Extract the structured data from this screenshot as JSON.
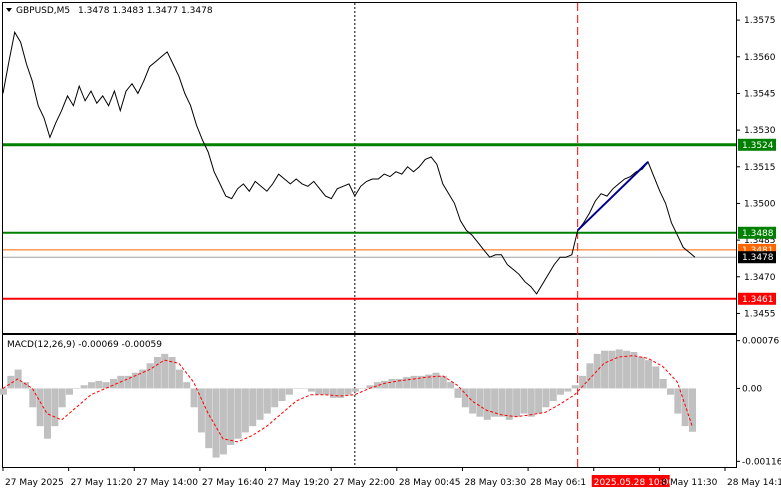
{
  "chart_data": [
    {
      "type": "line",
      "symbol_label": "GBPUSD,M5",
      "ohlc_label": "1.3478 1.3483 1.3477 1.3478",
      "ylim": [
        1.3447,
        1.3582
      ],
      "y_ticks": [
        "1.3575",
        "1.3560",
        "1.3545",
        "1.3530",
        "1.3515",
        "1.3500",
        "1.3485",
        "1.3470",
        "1.3455"
      ],
      "y_tick_values": [
        1.3575,
        1.356,
        1.3545,
        1.353,
        1.3515,
        1.35,
        1.3485,
        1.347,
        1.3455
      ],
      "x_ticks": [
        "27 May 2025",
        "27 May 11:20",
        "27 May 14:00",
        "27 May 16:40",
        "27 May 19:20",
        "27 May 22:00",
        "28 May 00:45",
        "28 May 03:30",
        "28 May 06:1",
        "2025.05.28 10:00",
        "8 May 11:30",
        "28 May 14:10"
      ],
      "x_range": [
        0,
        1000
      ],
      "series": [
        {
          "values": [
            [
              0,
              1.3545
            ],
            [
              8,
              1.3558
            ],
            [
              16,
              1.357
            ],
            [
              24,
              1.3566
            ],
            [
              32,
              1.3557
            ],
            [
              40,
              1.355
            ],
            [
              48,
              1.354
            ],
            [
              56,
              1.3535
            ],
            [
              64,
              1.3527
            ],
            [
              72,
              1.3533
            ],
            [
              80,
              1.3538
            ],
            [
              88,
              1.3544
            ],
            [
              96,
              1.354
            ],
            [
              104,
              1.3548
            ],
            [
              112,
              1.3542
            ],
            [
              120,
              1.3546
            ],
            [
              128,
              1.3541
            ],
            [
              136,
              1.3544
            ],
            [
              144,
              1.354
            ],
            [
              152,
              1.3546
            ],
            [
              160,
              1.3538
            ],
            [
              168,
              1.3546
            ],
            [
              176,
              1.3549
            ],
            [
              184,
              1.3545
            ],
            [
              192,
              1.355
            ],
            [
              200,
              1.3556
            ],
            [
              208,
              1.3558
            ],
            [
              216,
              1.356
            ],
            [
              224,
              1.3562
            ],
            [
              232,
              1.3557
            ],
            [
              240,
              1.3552
            ],
            [
              248,
              1.3545
            ],
            [
              256,
              1.354
            ],
            [
              264,
              1.3532
            ],
            [
              272,
              1.3526
            ],
            [
              280,
              1.3521
            ],
            [
              288,
              1.3513
            ],
            [
              296,
              1.3508
            ],
            [
              304,
              1.3503
            ],
            [
              312,
              1.3502
            ],
            [
              320,
              1.3506
            ],
            [
              328,
              1.3508
            ],
            [
              336,
              1.3505
            ],
            [
              344,
              1.3509
            ],
            [
              352,
              1.3507
            ],
            [
              360,
              1.3505
            ],
            [
              368,
              1.3508
            ],
            [
              376,
              1.3512
            ],
            [
              384,
              1.351
            ],
            [
              392,
              1.3508
            ],
            [
              400,
              1.351
            ],
            [
              408,
              1.3508
            ],
            [
              416,
              1.3507
            ],
            [
              424,
              1.3509
            ],
            [
              432,
              1.3506
            ],
            [
              440,
              1.3503
            ],
            [
              448,
              1.3502
            ],
            [
              456,
              1.3506
            ],
            [
              464,
              1.3507
            ],
            [
              472,
              1.3508
            ],
            [
              480,
              1.3503
            ],
            [
              488,
              1.3507
            ],
            [
              496,
              1.3509
            ],
            [
              504,
              1.351
            ],
            [
              512,
              1.351
            ],
            [
              520,
              1.3512
            ],
            [
              528,
              1.3511
            ],
            [
              536,
              1.3513
            ],
            [
              544,
              1.3512
            ],
            [
              552,
              1.3515
            ],
            [
              560,
              1.3513
            ],
            [
              568,
              1.3515
            ],
            [
              576,
              1.3518
            ],
            [
              584,
              1.3519
            ],
            [
              592,
              1.3516
            ],
            [
              600,
              1.3508
            ],
            [
              608,
              1.3504
            ],
            [
              616,
              1.35
            ],
            [
              624,
              1.3493
            ],
            [
              632,
              1.3489
            ],
            [
              640,
              1.3487
            ],
            [
              648,
              1.3484
            ],
            [
              656,
              1.3481
            ],
            [
              664,
              1.3478
            ],
            [
              672,
              1.3479
            ],
            [
              680,
              1.3479
            ],
            [
              688,
              1.3475
            ],
            [
              696,
              1.3473
            ],
            [
              704,
              1.3471
            ],
            [
              712,
              1.3468
            ],
            [
              720,
              1.3466
            ],
            [
              728,
              1.3463
            ],
            [
              736,
              1.3467
            ],
            [
              744,
              1.3471
            ],
            [
              752,
              1.3475
            ],
            [
              760,
              1.3478
            ],
            [
              768,
              1.3478
            ],
            [
              776,
              1.3479
            ],
            [
              784,
              1.3489
            ],
            [
              792,
              1.3492
            ],
            [
              800,
              1.3496
            ],
            [
              808,
              1.3501
            ],
            [
              816,
              1.3504
            ],
            [
              824,
              1.3503
            ],
            [
              832,
              1.3506
            ],
            [
              840,
              1.3508
            ],
            [
              848,
              1.351
            ],
            [
              856,
              1.3511
            ],
            [
              864,
              1.3513
            ],
            [
              872,
              1.3514
            ],
            [
              880,
              1.3517
            ],
            [
              888,
              1.3511
            ],
            [
              896,
              1.3505
            ],
            [
              904,
              1.35
            ],
            [
              912,
              1.3492
            ],
            [
              920,
              1.3487
            ],
            [
              928,
              1.3482
            ],
            [
              936,
              1.348
            ],
            [
              944,
              1.3478
            ]
          ]
        }
      ],
      "horizontal_levels": [
        {
          "value": 1.3524,
          "label": "1.3524",
          "color": "#008000"
        },
        {
          "value": 1.3488,
          "label": "1.3488",
          "color": "#008000"
        },
        {
          "value": 1.3481,
          "label": "1.3481",
          "color": "#ff6600"
        },
        {
          "value": 1.3478,
          "label": "1.3478",
          "color": "#000000"
        },
        {
          "value": 1.3461,
          "label": "1.3461",
          "color": "#ff0000"
        }
      ],
      "trendline": {
        "from": [
          784,
          1.3489
        ],
        "to": [
          880,
          1.3517
        ],
        "color": "#00008b"
      },
      "vertical_markers": [
        {
          "x": 480,
          "style": "dotted",
          "color": "#000000"
        },
        {
          "x": 784,
          "style": "dashed",
          "color": "#ff0000"
        }
      ],
      "grid": false,
      "legend": "none"
    },
    {
      "type": "bar",
      "indicator_label": "MACD(12,26,9) -0.00069 -0.00059",
      "ylim": [
        -0.00125,
        0.00085
      ],
      "y_ticks": [
        "0.00076",
        "0.00",
        "-0.00116"
      ],
      "y_tick_values": [
        0.00076,
        0.0,
        -0.00116
      ],
      "histogram_color": "#c0c0c0",
      "signal_color": "#ff0000",
      "x_range": [
        0,
        1000
      ],
      "histogram": [
        [
          0,
          -0.0001
        ],
        [
          10,
          0.0002
        ],
        [
          20,
          0.0003
        ],
        [
          30,
          0.0001
        ],
        [
          40,
          -0.0003
        ],
        [
          50,
          -0.0006
        ],
        [
          60,
          -0.0008
        ],
        [
          70,
          -0.0006
        ],
        [
          80,
          -0.0003
        ],
        [
          90,
          -0.0001
        ],
        [
          100,
          0.0
        ],
        [
          110,
          5e-05
        ],
        [
          120,
          0.0001
        ],
        [
          130,
          0.00012
        ],
        [
          140,
          0.0001
        ],
        [
          150,
          0.00015
        ],
        [
          160,
          0.0002
        ],
        [
          170,
          0.0002
        ],
        [
          180,
          0.00025
        ],
        [
          190,
          0.0003
        ],
        [
          200,
          0.0004
        ],
        [
          210,
          0.0005
        ],
        [
          220,
          0.00055
        ],
        [
          230,
          0.0005
        ],
        [
          240,
          0.0003
        ],
        [
          250,
          0.0001
        ],
        [
          260,
          -0.0003
        ],
        [
          270,
          -0.0007
        ],
        [
          280,
          -0.00095
        ],
        [
          290,
          -0.0011
        ],
        [
          300,
          -0.00105
        ],
        [
          310,
          -0.0009
        ],
        [
          320,
          -0.0008
        ],
        [
          330,
          -0.0007
        ],
        [
          340,
          -0.0006
        ],
        [
          350,
          -0.0005
        ],
        [
          360,
          -0.0004
        ],
        [
          370,
          -0.0003
        ],
        [
          380,
          -0.0002
        ],
        [
          390,
          -0.0001
        ],
        [
          400,
          0.0
        ],
        [
          410,
          0.0
        ],
        [
          420,
          -5e-05
        ],
        [
          430,
          -0.0001
        ],
        [
          440,
          -0.0001
        ],
        [
          450,
          -0.00015
        ],
        [
          460,
          -0.00015
        ],
        [
          470,
          -0.0001
        ],
        [
          480,
          -5e-05
        ],
        [
          490,
          0.0
        ],
        [
          500,
          5e-05
        ],
        [
          510,
          0.0001
        ],
        [
          520,
          0.00012
        ],
        [
          530,
          0.00015
        ],
        [
          540,
          0.00015
        ],
        [
          550,
          0.00018
        ],
        [
          560,
          0.0002
        ],
        [
          570,
          0.0002
        ],
        [
          580,
          0.00022
        ],
        [
          590,
          0.00025
        ],
        [
          600,
          0.0002
        ],
        [
          610,
          0.0001
        ],
        [
          620,
          -0.00015
        ],
        [
          630,
          -0.0003
        ],
        [
          640,
          -0.0004
        ],
        [
          650,
          -0.00045
        ],
        [
          660,
          -0.0005
        ],
        [
          670,
          -0.00045
        ],
        [
          680,
          -0.00045
        ],
        [
          690,
          -0.0005
        ],
        [
          700,
          -0.00045
        ],
        [
          710,
          -0.0004
        ],
        [
          720,
          -0.00045
        ],
        [
          730,
          -0.0004
        ],
        [
          740,
          -0.0003
        ],
        [
          750,
          -0.0002
        ],
        [
          760,
          -0.0001
        ],
        [
          770,
          -5e-05
        ],
        [
          780,
          5e-05
        ],
        [
          790,
          0.0002
        ],
        [
          800,
          0.0004
        ],
        [
          810,
          0.00055
        ],
        [
          820,
          0.0006
        ],
        [
          830,
          0.0006
        ],
        [
          840,
          0.00062
        ],
        [
          850,
          0.0006
        ],
        [
          860,
          0.00058
        ],
        [
          870,
          0.0005
        ],
        [
          880,
          0.00045
        ],
        [
          890,
          0.00035
        ],
        [
          900,
          0.00015
        ],
        [
          910,
          -0.0001
        ],
        [
          920,
          -0.0004
        ],
        [
          930,
          -0.0006
        ],
        [
          940,
          -0.00069
        ]
      ],
      "signal": [
        [
          0,
          0.0
        ],
        [
          20,
          0.00015
        ],
        [
          40,
          0.0
        ],
        [
          60,
          -0.0004
        ],
        [
          80,
          -0.0005
        ],
        [
          100,
          -0.0003
        ],
        [
          120,
          -0.0001
        ],
        [
          140,
          0.0
        ],
        [
          160,
          0.0001
        ],
        [
          180,
          0.0002
        ],
        [
          200,
          0.0003
        ],
        [
          220,
          0.00045
        ],
        [
          240,
          0.0004
        ],
        [
          260,
          0.0001
        ],
        [
          280,
          -0.0004
        ],
        [
          300,
          -0.0008
        ],
        [
          320,
          -0.00085
        ],
        [
          340,
          -0.00075
        ],
        [
          360,
          -0.0006
        ],
        [
          380,
          -0.0004
        ],
        [
          400,
          -0.0002
        ],
        [
          420,
          -0.0001
        ],
        [
          440,
          -0.0001
        ],
        [
          460,
          -0.00012
        ],
        [
          480,
          -0.0001
        ],
        [
          500,
          0.0
        ],
        [
          520,
          8e-05
        ],
        [
          540,
          0.00012
        ],
        [
          560,
          0.00015
        ],
        [
          580,
          0.00018
        ],
        [
          600,
          0.0002
        ],
        [
          620,
          5e-05
        ],
        [
          640,
          -0.0002
        ],
        [
          660,
          -0.00035
        ],
        [
          680,
          -0.00042
        ],
        [
          700,
          -0.00045
        ],
        [
          720,
          -0.00042
        ],
        [
          740,
          -0.00038
        ],
        [
          760,
          -0.00025
        ],
        [
          780,
          -0.0001
        ],
        [
          800,
          0.00015
        ],
        [
          820,
          0.0004
        ],
        [
          840,
          0.0005
        ],
        [
          860,
          0.00052
        ],
        [
          880,
          0.00048
        ],
        [
          900,
          0.00035
        ],
        [
          920,
          0.0001
        ],
        [
          940,
          -0.00059
        ]
      ]
    }
  ],
  "colors": {
    "axis": "#000000",
    "price_line": "#000000"
  },
  "icons": {
    "symbol_menu": "triangle-down-icon"
  }
}
